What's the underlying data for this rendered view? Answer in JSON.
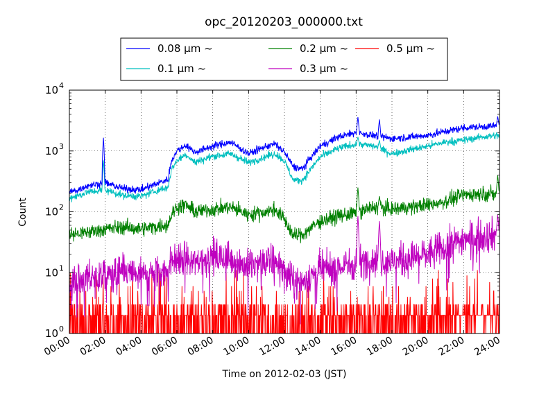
{
  "chart_data": {
    "type": "line",
    "title": "opc_20120203_000000.txt",
    "xlabel": "Time on 2012-02-03 (JST)",
    "ylabel": "Count",
    "y_scale": "log",
    "ylim": [
      1,
      10000
    ],
    "xlim": [
      "00:00",
      "24:00"
    ],
    "x_ticks": [
      "00:00",
      "02:00",
      "04:00",
      "06:00",
      "08:00",
      "10:00",
      "12:00",
      "14:00",
      "16:00",
      "18:00",
      "20:00",
      "22:00",
      "24:00"
    ],
    "y_ticks": [
      {
        "value": 1,
        "base": "10",
        "exp": "0"
      },
      {
        "value": 10,
        "base": "10",
        "exp": "1"
      },
      {
        "value": 100,
        "base": "10",
        "exp": "2"
      },
      {
        "value": 1000,
        "base": "10",
        "exp": "3"
      },
      {
        "value": 10000,
        "base": "10",
        "exp": "4"
      }
    ],
    "grid": true,
    "legend_position": "top",
    "series": [
      {
        "name": "0.08 μm ~",
        "color": "#0000ff",
        "noise": 0.06,
        "spikes": [
          [
            1.9,
            1650
          ],
          [
            16.1,
            3600
          ],
          [
            17.3,
            3300
          ],
          [
            23.9,
            3700
          ]
        ],
        "x": [
          0,
          0.5,
          1,
          2,
          3,
          4,
          5,
          5.5,
          5.7,
          6,
          6.5,
          7,
          8,
          9,
          10,
          11,
          11.5,
          12,
          12.5,
          13,
          13.5,
          14,
          15,
          16,
          17,
          18,
          19,
          20,
          21,
          22,
          23,
          24
        ],
        "y": [
          210,
          230,
          270,
          300,
          240,
          230,
          300,
          340,
          700,
          1000,
          1250,
          950,
          1200,
          1400,
          900,
          1200,
          1300,
          950,
          550,
          500,
          800,
          1200,
          1700,
          2000,
          1800,
          1600,
          1700,
          1800,
          2100,
          2400,
          2500,
          2600
        ]
      },
      {
        "name": "0.1 μm ~",
        "color": "#00bfbf",
        "noise": 0.06,
        "spikes": [
          [
            1.9,
            700
          ],
          [
            16.1,
            1700
          ],
          [
            17.3,
            1500
          ]
        ],
        "x": [
          0,
          0.5,
          1,
          2,
          3,
          4,
          5,
          5.5,
          5.7,
          6,
          6.5,
          7,
          8,
          9,
          10,
          11,
          11.5,
          12,
          12.5,
          13,
          13.5,
          14,
          15,
          16,
          17,
          18,
          19,
          20,
          21,
          22,
          23,
          24
        ],
        "y": [
          170,
          185,
          210,
          230,
          185,
          180,
          230,
          250,
          500,
          700,
          880,
          650,
          820,
          900,
          640,
          820,
          900,
          680,
          330,
          330,
          520,
          800,
          1100,
          1300,
          1200,
          900,
          1050,
          1200,
          1400,
          1500,
          1700,
          1800
        ]
      },
      {
        "name": "0.2 μm ~",
        "color": "#008000",
        "noise": 0.12,
        "spikes": [
          [
            16.1,
            250
          ],
          [
            17.3,
            180
          ],
          [
            23.9,
            400
          ]
        ],
        "x": [
          0,
          1,
          2,
          3,
          4,
          5,
          5.5,
          5.7,
          6,
          6.5,
          7,
          8,
          9,
          10,
          11,
          11.5,
          12,
          12.5,
          13,
          13.5,
          14,
          15,
          16,
          17,
          18,
          19,
          20,
          21,
          22,
          23,
          24
        ],
        "y": [
          42,
          46,
          52,
          56,
          52,
          58,
          62,
          90,
          120,
          130,
          100,
          110,
          120,
          90,
          100,
          110,
          75,
          40,
          42,
          55,
          70,
          85,
          95,
          120,
          110,
          120,
          130,
          150,
          190,
          200,
          190
        ]
      },
      {
        "name": "0.3 μm ~",
        "color": "#bf00bf",
        "noise": 0.28,
        "spikes": [
          [
            16.1,
            85
          ],
          [
            17.3,
            70
          ],
          [
            23.9,
            90
          ]
        ],
        "x": [
          0,
          1,
          2,
          3,
          4,
          5,
          5.5,
          5.7,
          6,
          7,
          8,
          9,
          10,
          11,
          11.5,
          12,
          12.5,
          13,
          13.5,
          14,
          15,
          16,
          17,
          18,
          19,
          20,
          21,
          22,
          23,
          24
        ],
        "y": [
          7,
          8,
          9,
          10,
          9,
          10,
          11,
          15,
          17,
          15,
          18,
          17,
          12,
          15,
          16,
          10,
          7,
          7,
          9,
          11,
          12,
          14,
          17,
          15,
          17,
          20,
          27,
          35,
          40,
          42
        ]
      },
      {
        "name": "0.5 μm ~",
        "color": "#ff0000",
        "noise": 0,
        "spikes": [],
        "x": [
          0,
          6,
          12,
          18,
          24
        ],
        "y": [
          1.5,
          2,
          1.5,
          2,
          3
        ]
      }
    ]
  }
}
